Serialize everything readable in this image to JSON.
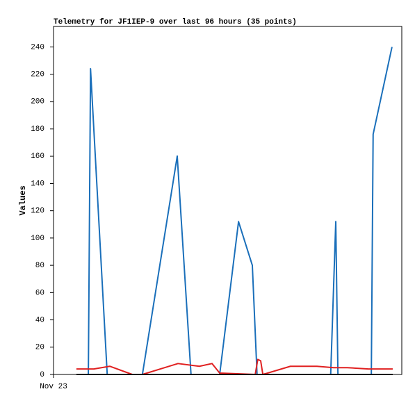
{
  "chart_data": {
    "type": "line",
    "title": "Telemetry for JF1IEP-9 over last 96 hours (35 points)",
    "y_label": "Values",
    "xlim": [
      0,
      96
    ],
    "xticks": [
      {
        "value": 0,
        "label": "Nov 23"
      }
    ],
    "ylim": [
      0,
      255
    ],
    "yticks": [
      0,
      20,
      40,
      60,
      80,
      100,
      120,
      140,
      160,
      180,
      200,
      220,
      240
    ],
    "grid": false,
    "series": [
      {
        "color": "#1a6fba",
        "x": [
          9.6,
          10.2,
          14.8,
          24.5,
          34.1,
          37.9,
          45.8,
          51.0,
          54.8,
          56.1,
          76.4,
          77.8,
          78.4,
          87.6,
          88.1,
          93.3
        ],
        "values": [
          0,
          224,
          0,
          0,
          160,
          0,
          0,
          112,
          80,
          0,
          0,
          112,
          0,
          0,
          176,
          240
        ]
      },
      {
        "color": "#e02020",
        "x": [
          6.3,
          11.1,
          15.5,
          21.7,
          24.5,
          34.3,
          40.2,
          43.7,
          45.8,
          55.6,
          56.3,
          57.1,
          57.7,
          65.3,
          72.6,
          77.2,
          81.0,
          86.8,
          93.5
        ],
        "values": [
          4,
          4,
          6,
          0,
          0,
          8,
          6,
          8,
          1,
          0,
          11,
          10,
          0,
          6,
          6,
          5,
          5,
          4,
          4
        ]
      },
      {
        "color": "#000000",
        "x": [
          6.3,
          93.5
        ],
        "values": [
          0,
          0
        ]
      }
    ]
  }
}
